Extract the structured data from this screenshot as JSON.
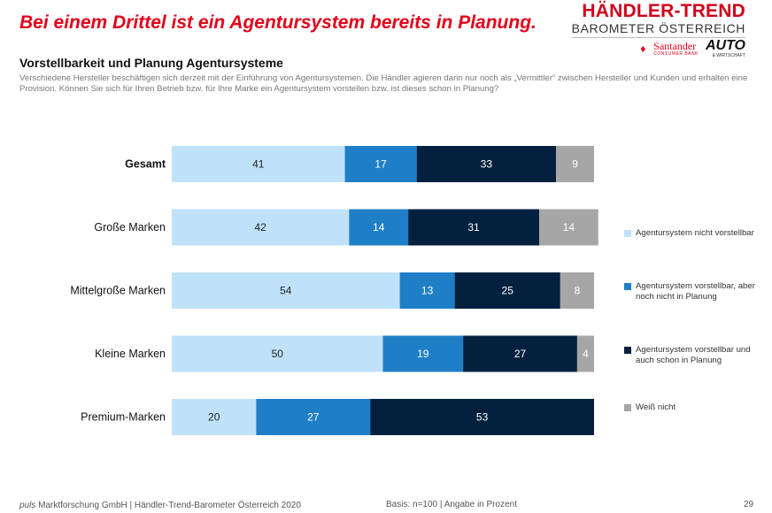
{
  "headline": "Bei einem Drittel ist ein Agentursystem bereits in Planung.",
  "brand": {
    "title": "HÄNDLER-TREND",
    "subtitle": "BAROMETER ÖSTERREICH",
    "santander_name": "Santander",
    "santander_sub": "CONSUMER BANK",
    "auto_name": "AUTO",
    "auto_sub": "& WIRTSCHAFT"
  },
  "subheading": "Vorstellbarkeit und Planung Agentursysteme",
  "description": "Verschiedene Hersteller beschäftigen sich derzeit mit der Einführung von Agentursystemen. Die Händler agieren darin nur noch als „Vermittler“ zwischen Hersteller und Kunden und erhalten eine Provision. Können Sie sich für Ihren Betrieb bzw. für Ihre Marke ein Agentursystem vorstellen bzw. ist dieses schon in Planung?",
  "footer": {
    "company_prefix": "puls",
    "company": " Marktforschung GmbH | Händler-Trend-Barometer Österreich 2020",
    "basis": "Basis: n=100 | Angabe in Prozent",
    "page": "29"
  },
  "chart_data": {
    "type": "bar",
    "orientation": "horizontal",
    "stacked": true,
    "categories": [
      "Gesamt",
      "Große Marken",
      "Mittelgroße Marken",
      "Kleine Marken",
      "Premium-Marken"
    ],
    "bold_category": "Gesamt",
    "xlim": [
      0,
      100
    ],
    "legend_position": "right",
    "series": [
      {
        "name": "Agentursystem nicht vorstellbar",
        "color": "#bfe2f8",
        "label_color": "#222222",
        "values": [
          41,
          42,
          54,
          50,
          20
        ]
      },
      {
        "name": "Agentursystem vorstellbar, aber noch nicht in Planung",
        "color": "#1f7fc6",
        "label_color": "#ffffff",
        "values": [
          17,
          14,
          13,
          19,
          27
        ]
      },
      {
        "name": "Agentursystem vorstellbar und auch schon in Planung",
        "color": "#03213f",
        "label_color": "#ffffff",
        "values": [
          33,
          31,
          25,
          27,
          53
        ]
      },
      {
        "name": "Weiß nicht",
        "color": "#a6a6a6",
        "label_color": "#ffffff",
        "values": [
          9,
          14,
          8,
          4,
          null
        ]
      }
    ]
  }
}
